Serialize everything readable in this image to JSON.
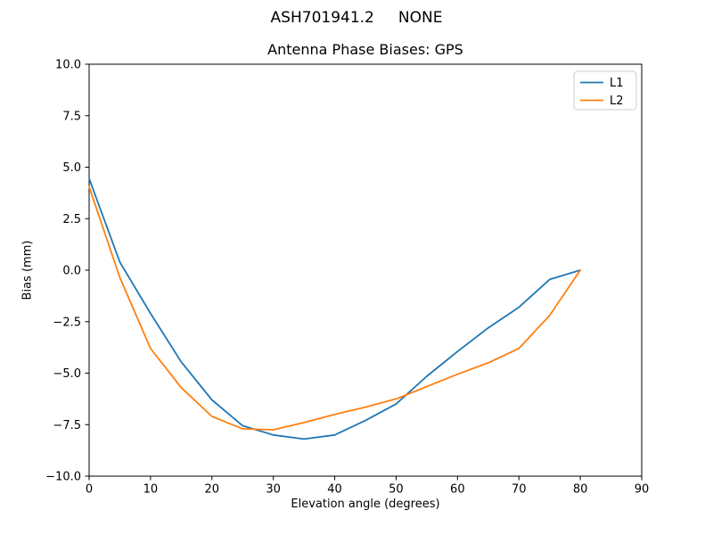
{
  "figure": {
    "suptitle": "ASH701941.2     NONE",
    "title": "Antenna Phase Biases: GPS",
    "xlabel": "Elevation angle (degrees)",
    "ylabel": "Bias (mm)"
  },
  "chart_data": {
    "type": "line",
    "title": "Antenna Phase Biases: GPS",
    "suptitle": "ASH701941.2     NONE",
    "xlabel": "Elevation angle (degrees)",
    "ylabel": "Bias (mm)",
    "xlim": [
      0,
      90
    ],
    "ylim": [
      -10,
      10
    ],
    "grid": false,
    "legend_position": "upper right",
    "xticks": {
      "values": [
        0,
        10,
        20,
        30,
        40,
        50,
        60,
        70,
        80,
        90
      ],
      "labels": [
        "0",
        "10",
        "20",
        "30",
        "40",
        "50",
        "60",
        "70",
        "80",
        "90"
      ]
    },
    "yticks": {
      "values": [
        10,
        7.5,
        5,
        2.5,
        0,
        -2.5,
        -5,
        -7.5,
        -10
      ],
      "labels": [
        "10.0",
        "7.5",
        "5.0",
        "2.5",
        "0.0",
        "−2.5",
        "−5.0",
        "−7.5",
        "−10.0"
      ]
    },
    "x": [
      0,
      5,
      10,
      15,
      20,
      25,
      30,
      35,
      40,
      45,
      50,
      55,
      60,
      65,
      70,
      75,
      80
    ],
    "series": [
      {
        "name": "L1",
        "color": "#1f77b4",
        "values": [
          4.45,
          0.4,
          -2.1,
          -4.45,
          -6.3,
          -7.55,
          -8.0,
          -8.2,
          -8.0,
          -7.3,
          -6.5,
          -5.15,
          -3.95,
          -2.8,
          -1.8,
          -0.45,
          0.0
        ]
      },
      {
        "name": "L2",
        "color": "#ff7f0e",
        "values": [
          4.05,
          -0.35,
          -3.8,
          -5.7,
          -7.1,
          -7.7,
          -7.75,
          -7.4,
          -7.0,
          -6.65,
          -6.25,
          -5.65,
          -5.05,
          -4.5,
          -3.8,
          -2.2,
          0.0
        ]
      }
    ],
    "colors": {
      "axes": "#000000",
      "legend_border": "#cccccc",
      "background": "#ffffff"
    }
  }
}
